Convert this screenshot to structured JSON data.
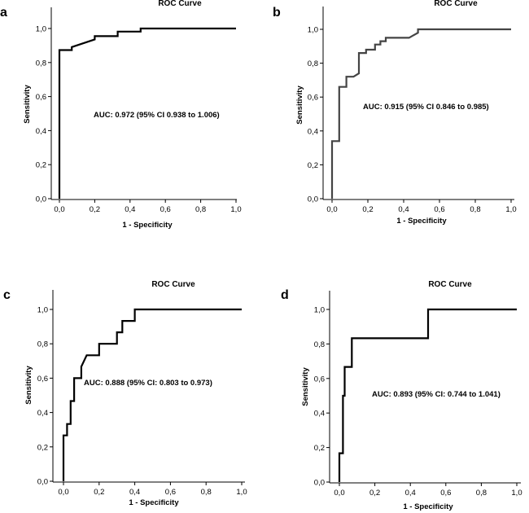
{
  "chart_data": [
    {
      "panel": "a",
      "type": "line",
      "title": "ROC Curve",
      "xlabel": "1 - Specificity",
      "ylabel": "Sensitivity",
      "xlim": [
        0,
        1
      ],
      "ylim": [
        0,
        1
      ],
      "xticks": [
        "0,0",
        "0,2",
        "0,4",
        "0,6",
        "0,8",
        "1,0"
      ],
      "yticks": [
        "0,0",
        "0,2",
        "0,4",
        "0,6",
        "0,8",
        "1,0"
      ],
      "annotation": "AUC: 0.972 (95% CI 0.938 to 1.006)",
      "line_color": "#000000",
      "series": [
        {
          "name": "ROC",
          "x": [
            0,
            0,
            0.07,
            0.07,
            0.2,
            0.2,
            0.33,
            0.33,
            0.46,
            0.46,
            1.0
          ],
          "y": [
            0,
            0.873,
            0.873,
            0.891,
            0.936,
            0.955,
            0.955,
            0.982,
            0.982,
            1.0,
            1.0
          ]
        }
      ]
    },
    {
      "panel": "b",
      "type": "line",
      "title": "ROC Curve",
      "xlabel": "1 - Specificity",
      "ylabel": "Sensitivity",
      "xlim": [
        0,
        1
      ],
      "ylim": [
        0,
        1
      ],
      "xticks": [
        "0,0",
        "0,2",
        "0,4",
        "0,6",
        "0,8",
        "1,0"
      ],
      "yticks": [
        "0,0",
        "0,2",
        "0,4",
        "0,6",
        "0,8",
        "1,0"
      ],
      "annotation": "AUC: 0.915 (95% CI 0.846 to 0.985)",
      "line_color": "#444444",
      "series": [
        {
          "name": "ROC",
          "x": [
            0,
            0,
            0.04,
            0.04,
            0.08,
            0.08,
            0.12,
            0.15,
            0.15,
            0.19,
            0.19,
            0.24,
            0.24,
            0.27,
            0.27,
            0.3,
            0.3,
            0.43,
            0.48,
            0.48,
            1.0
          ],
          "y": [
            0,
            0.34,
            0.34,
            0.66,
            0.66,
            0.72,
            0.72,
            0.74,
            0.86,
            0.86,
            0.88,
            0.88,
            0.91,
            0.91,
            0.93,
            0.93,
            0.95,
            0.95,
            0.98,
            1.0,
            1.0
          ]
        }
      ]
    },
    {
      "panel": "c",
      "type": "line",
      "title": "ROC Curve",
      "xlabel": "1 - Specificity",
      "ylabel": "Sensitivity",
      "xlim": [
        0,
        1
      ],
      "ylim": [
        0,
        1
      ],
      "xticks": [
        "0,0",
        "0,2",
        "0,4",
        "0,6",
        "0,8",
        "1,0"
      ],
      "yticks": [
        "0,0",
        "0,2",
        "0,4",
        "0,6",
        "0,8",
        "1,0"
      ],
      "annotation": "AUC: 0.888 (95% CI: 0.803 to 0.973)",
      "line_color": "#000000",
      "series": [
        {
          "name": "ROC",
          "x": [
            0,
            0,
            0.02,
            0.02,
            0.04,
            0.04,
            0.06,
            0.06,
            0.1,
            0.1,
            0.13,
            0.2,
            0.2,
            0.3,
            0.3,
            0.33,
            0.33,
            0.4,
            0.4,
            1.0
          ],
          "y": [
            0,
            0.267,
            0.267,
            0.333,
            0.333,
            0.467,
            0.467,
            0.6,
            0.6,
            0.667,
            0.733,
            0.733,
            0.8,
            0.8,
            0.867,
            0.867,
            0.933,
            0.933,
            1.0,
            1.0
          ]
        }
      ]
    },
    {
      "panel": "d",
      "type": "line",
      "title": "ROC Curve",
      "xlabel": "1 - Specificity",
      "ylabel": "Sensitivity",
      "xlim": [
        0,
        1
      ],
      "ylim": [
        0,
        1
      ],
      "xticks": [
        "0,0",
        "0,2",
        "0,4",
        "0,6",
        "0,8",
        "1,0"
      ],
      "yticks": [
        "0,0",
        "0,2",
        "0,4",
        "0,6",
        "0,8",
        "1,0"
      ],
      "annotation": "AUC: 0.893 (95% CI: 0.744 to 1.041)",
      "line_color": "#000000",
      "series": [
        {
          "name": "ROC",
          "x": [
            0,
            0,
            0.02,
            0.02,
            0.03,
            0.03,
            0.07,
            0.07,
            0.5,
            0.5,
            1.0
          ],
          "y": [
            0,
            0.167,
            0.167,
            0.5,
            0.5,
            0.667,
            0.667,
            0.833,
            0.833,
            1.0,
            1.0
          ]
        }
      ]
    }
  ]
}
